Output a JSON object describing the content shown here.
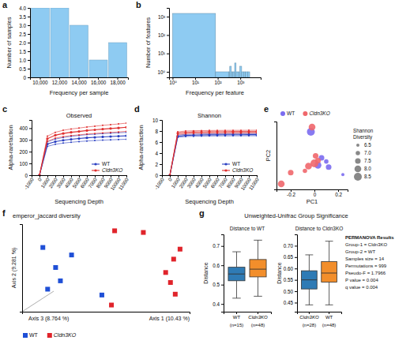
{
  "chart_data": [
    {
      "panel": "a",
      "type": "bar",
      "categories": [
        "10,000",
        "12,000",
        "14,000",
        "16,000",
        "18,000"
      ],
      "values": [
        4,
        4,
        3,
        1,
        2
      ],
      "color": "#8ecbf2",
      "x_label": "Frequency per sample",
      "y_label": "Number of samples",
      "ylim": [
        0,
        4
      ],
      "yticks": [
        0,
        0.5,
        {
          "value": 1,
          "label": "1.0"
        },
        1.5,
        {
          "value": 2,
          "label": "2.0"
        },
        2.5,
        {
          "value": 3,
          "label": "3.0"
        },
        3.5,
        {
          "value": 4,
          "label": "4.0"
        }
      ]
    },
    {
      "panel": "b",
      "type": "histogram",
      "log": true,
      "bins": [
        1,
        80,
        300,
        340,
        400,
        470,
        560,
        650,
        800,
        950,
        1150,
        1400,
        1700,
        2100,
        2600
      ],
      "values": [
        1500,
        1,
        1,
        2,
        1,
        1,
        3,
        1,
        1,
        2,
        1,
        1,
        1,
        1
      ],
      "color": "#8ecbf2",
      "x_label": "Frequency per feature",
      "y_label": "Number of features",
      "xlim": [
        0.7,
        8000
      ],
      "ylim": [
        0.5,
        3000
      ],
      "xticks": [
        {
          "value": 1,
          "label": "10⁰"
        },
        {
          "value": 10,
          "label": "10¹"
        },
        {
          "value": 100,
          "label": "10²"
        },
        {
          "value": 1000,
          "label": "10³"
        }
      ],
      "yticks": [
        {
          "value": 1,
          "label": "10⁰"
        },
        {
          "value": 10,
          "label": "10¹"
        },
        {
          "value": 100,
          "label": "10²"
        },
        {
          "value": 1000,
          "label": "10³"
        }
      ]
    },
    {
      "panel": "c",
      "type": "line",
      "title": "Observed",
      "x": [
        1,
        1000,
        2000,
        3000,
        4000,
        5000,
        6000,
        7000,
        8000,
        9000,
        10000,
        11000
      ],
      "xlim": [
        -1000,
        11000
      ],
      "xticks": [
        -1000,
        0,
        1000,
        2000,
        3000,
        4000,
        5000,
        6000,
        7000,
        8000,
        9000,
        10000,
        11000
      ],
      "ylim": [
        0,
        470
      ],
      "yticks": [
        0,
        100,
        200,
        300,
        400
      ],
      "x_label": "Sequencing Depth",
      "y_label": "Alpha-rarefaction",
      "marker": "circle",
      "legend": "lower right",
      "series": [
        {
          "name": "WT",
          "color": "#2a3fc1",
          "values": [
            1,
            265,
            285,
            297,
            305,
            312,
            318,
            322,
            326,
            329,
            332,
            335
          ],
          "error": [
            0,
            20,
            22,
            24,
            25,
            26,
            27,
            27,
            28,
            28,
            29,
            29
          ]
        },
        {
          "name": "Cldn3KO",
          "color": "#e03030",
          "values": [
            1,
            310,
            340,
            355,
            365,
            372,
            380,
            386,
            392,
            397,
            402,
            408
          ],
          "error": [
            0,
            22,
            25,
            27,
            28,
            29,
            30,
            31,
            32,
            33,
            34,
            35
          ]
        }
      ]
    },
    {
      "panel": "d",
      "type": "line",
      "title": "Shannon",
      "x": [
        1,
        1000,
        2000,
        3000,
        4000,
        5000,
        6000,
        7000,
        8000,
        9000,
        10000,
        11000
      ],
      "xlim": [
        -1000,
        11000
      ],
      "xticks": [
        -1000,
        0,
        1000,
        2000,
        3000,
        4000,
        5000,
        6000,
        7000,
        8000,
        9000,
        10000,
        11000
      ],
      "ylim": [
        0,
        10
      ],
      "yticks": [
        0,
        2,
        4,
        6,
        8,
        10
      ],
      "x_label": "Sequencing Depth",
      "y_label": "Alpha-rarefaction",
      "marker": "circle",
      "legend": "lower right",
      "series": [
        {
          "name": "WT",
          "color": "#2a3fc1",
          "values": [
            0,
            7.05,
            7.2,
            7.25,
            7.28,
            7.3,
            7.31,
            7.32,
            7.33,
            7.33,
            7.34,
            7.34
          ],
          "error": [
            0,
            0.2,
            0.2,
            0.2,
            0.2,
            0.2,
            0.2,
            0.2,
            0.2,
            0.2,
            0.2,
            0.2
          ]
        },
        {
          "name": "Cldn3KO",
          "color": "#e03030",
          "values": [
            0,
            7.6,
            7.75,
            7.8,
            7.82,
            7.84,
            7.85,
            7.86,
            7.87,
            7.87,
            7.88,
            7.88
          ],
          "error": [
            0,
            0.25,
            0.25,
            0.25,
            0.25,
            0.25,
            0.25,
            0.25,
            0.25,
            0.25,
            0.25,
            0.25
          ]
        }
      ]
    },
    {
      "panel": "e",
      "type": "scatter",
      "x_label": "PC1",
      "y_label": "PC2",
      "xlim": [
        -0.32,
        0.28
      ],
      "ylim": [
        -0.28,
        0.45
      ],
      "xticks": [
        -0.2,
        0,
        0.2
      ],
      "tick_labels": "x",
      "legend": "top",
      "series": [
        {
          "name": "WT",
          "color": "#7b6cf0",
          "x": [
            -0.03,
            0.06,
            0.1,
            0.12,
            0.24,
            0.03
          ],
          "values": [
            0.34,
            0.06,
            0.02,
            -0.04,
            -0.12,
            -0.02
          ],
          "size": [
            8.5,
            7.5,
            7.0,
            7.5,
            6.5,
            8.0
          ]
        },
        {
          "name": "Cldn3KO",
          "color": "#f0676b",
          "x": [
            -0.02,
            0.01,
            0.0,
            -0.05,
            -0.08,
            -0.2,
            -0.28,
            0.03
          ],
          "values": [
            0.39,
            0.08,
            0.0,
            -0.03,
            -0.08,
            -0.1,
            -0.22,
            0.03
          ],
          "size": [
            8.0,
            7.5,
            8.5,
            8.0,
            7.0,
            7.5,
            8.0,
            7.5
          ]
        }
      ],
      "size_legend": {
        "title": [
          "Shannon",
          "Diversity"
        ],
        "values": [
          6.5,
          {
            "value": 7,
            "label": "7.0"
          },
          7.5,
          {
            "value": 8,
            "label": "8.0"
          },
          8.5
        ]
      }
    },
    {
      "panel": "f",
      "type": "scatter",
      "title": "emperor_jaccard diversity",
      "x_label": "Axis 1 (10.43 %)",
      "y_label": "Axis 2 (9.281 %)",
      "z_label": "Axis 3 (8.764 %)",
      "xlim": [
        -0.5,
        0.55
      ],
      "ylim": [
        -0.5,
        0.55
      ],
      "tick_labels": false,
      "marker": "square",
      "legend": "bottom",
      "series": [
        {
          "name": "WT",
          "color": "#1f4fd6",
          "x": [
            -0.37,
            -0.19,
            -0.29,
            -0.26,
            -0.34,
            0.0
          ],
          "values": [
            0.27,
            0.18,
            0.03,
            -0.13,
            -0.23,
            -0.3
          ]
        },
        {
          "name": "Cldn3KO",
          "color": "#e0242b",
          "x": [
            0.08,
            0.26,
            0.49,
            0.45,
            0.4,
            0.43,
            0.46,
            0.06
          ],
          "values": [
            0.47,
            0.45,
            0.25,
            0.13,
            -0.03,
            -0.15,
            -0.29,
            -0.42
          ]
        }
      ]
    },
    {
      "panel": "g",
      "type": "box",
      "title": "Unweighted-Unifrac Group Significance",
      "groups": [
        {
          "title": "Distance to WT",
          "y_label": "Distance",
          "categories": [
            "WT",
            "Cldn3KO"
          ],
          "n_labels": [
            "(n=15)",
            "(n=48)"
          ],
          "colors": [
            "#2f7bb5",
            "#f28e2b"
          ],
          "stats": [
            [
              0.43,
              0.52,
              0.555,
              0.59,
              0.67
            ],
            [
              0.44,
              0.54,
              0.58,
              0.63,
              0.73
            ]
          ],
          "ylim": [
            0.36,
            0.76
          ],
          "yticks": [
            0.4,
            0.5,
            0.6,
            0.7
          ]
        },
        {
          "title": "Distance to Cldn3KO",
          "y_label": "Distance",
          "categories": [
            "Cldn3KO",
            "WT"
          ],
          "n_labels": [
            "(n=28)",
            "(n=48)"
          ],
          "colors": [
            "#2f7bb5",
            "#f28e2b"
          ],
          "stats": [
            [
              0.44,
              0.51,
              0.55,
              0.59,
              0.66
            ],
            [
              0.44,
              0.54,
              0.58,
              0.63,
              0.72
            ]
          ],
          "ylim": [
            0.41,
            0.75
          ],
          "yticks": [
            0.45,
            {
              "value": 0.5,
              "label": "0.50"
            },
            0.55,
            {
              "value": 0.6,
              "label": "0.60"
            },
            0.65,
            {
              "value": 0.7,
              "label": "0.70"
            }
          ]
        }
      ],
      "annotations": [
        "PERMANOVA Results",
        "Group-1 = Cldn3KO",
        "Group-2 = WT",
        "Samples size = 14",
        "Permutations = 999",
        "Pseudo-F = 1.7966",
        "P value = 0.004",
        "q value = 0.004"
      ]
    }
  ]
}
